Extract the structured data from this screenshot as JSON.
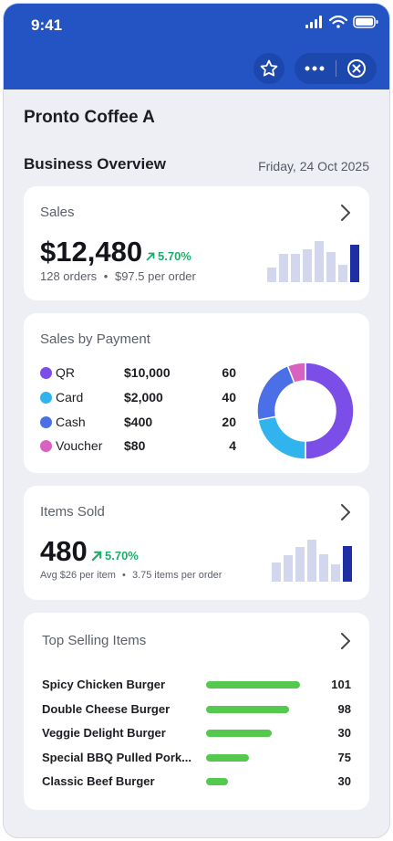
{
  "status_bar": {
    "time": "9:41"
  },
  "header_actions": {
    "star": "star-icon",
    "more": "more-icon",
    "close": "close-icon"
  },
  "store": {
    "name": "Pronto Coffee A"
  },
  "overview": {
    "title": "Business Overview",
    "date": "Friday, 24 Oct 2025"
  },
  "sales": {
    "label": "Sales",
    "amount": "$12,480",
    "trend": "5.70%",
    "orders": "128 orders",
    "separator": "•",
    "per_order": "$97.5 per order",
    "bars": [
      0.32,
      0.62,
      0.62,
      0.72,
      0.9,
      0.65,
      0.38,
      0.82
    ]
  },
  "payment": {
    "label": "Sales by Payment",
    "rows": [
      {
        "name": "QR",
        "amount": "$10,000",
        "count": "60",
        "color": "#7b4ee8"
      },
      {
        "name": "Card",
        "amount": "$2,000",
        "count": "40",
        "color": "#31b4ee"
      },
      {
        "name": "Cash",
        "amount": "$400",
        "count": "20",
        "color": "#4a6fe6"
      },
      {
        "name": "Voucher",
        "amount": "$80",
        "count": "4",
        "color": "#d862c0"
      }
    ],
    "donut": [
      {
        "value": 50,
        "color": "#7b4ee8"
      },
      {
        "value": 22,
        "color": "#31b4ee"
      },
      {
        "value": 22,
        "color": "#4a6fe6"
      },
      {
        "value": 6,
        "color": "#d862c0"
      }
    ]
  },
  "items_sold": {
    "label": "Items Sold",
    "amount": "480",
    "trend": "5.70%",
    "avg": "Avg $26 per item",
    "separator": "•",
    "per_order": "3.75 items per order",
    "bars": [
      0.42,
      0.58,
      0.75,
      0.92,
      0.6,
      0.38,
      0.78
    ]
  },
  "top_items": {
    "label": "Top Selling Items",
    "rows": [
      {
        "name": "Spicy Chicken Burger",
        "value": "101",
        "fill": 1.0
      },
      {
        "name": "Double Cheese Burger",
        "value": "98",
        "fill": 0.88
      },
      {
        "name": "Veggie Delight Burger",
        "value": "30",
        "fill": 0.7
      },
      {
        "name": "Special BBQ Pulled Pork...",
        "value": "75",
        "fill": 0.46
      },
      {
        "name": "Classic Beef Burger",
        "value": "30",
        "fill": 0.23
      }
    ]
  }
}
